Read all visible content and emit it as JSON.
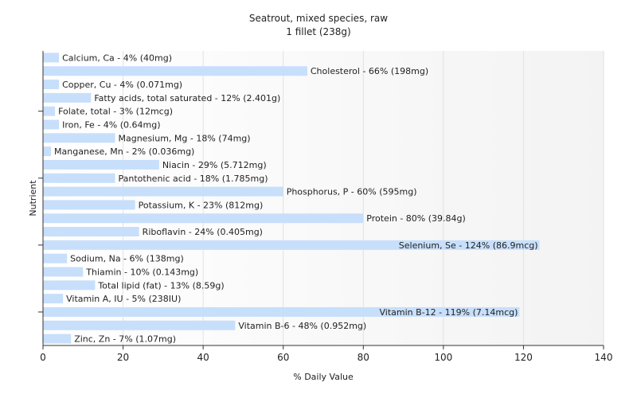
{
  "chart_data": {
    "type": "bar",
    "orientation": "horizontal",
    "title": "Seatrout, mixed species, raw",
    "subtitle": "1 fillet (238g)",
    "xlabel": "% Daily Value",
    "ylabel": "Nutrient",
    "xlim": [
      0,
      140
    ],
    "xticks": [
      0,
      20,
      40,
      60,
      80,
      100,
      120,
      140
    ],
    "grid": true,
    "bar_color": "#c7dffb",
    "categories": [
      "Calcium, Ca",
      "Cholesterol",
      "Copper, Cu",
      "Fatty acids, total saturated",
      "Folate, total",
      "Iron, Fe",
      "Magnesium, Mg",
      "Manganese, Mn",
      "Niacin",
      "Pantothenic acid",
      "Phosphorus, P",
      "Potassium, K",
      "Protein",
      "Riboflavin",
      "Selenium, Se",
      "Sodium, Na",
      "Thiamin",
      "Total lipid (fat)",
      "Vitamin A, IU",
      "Vitamin B-12",
      "Vitamin B-6",
      "Zinc, Zn"
    ],
    "values": [
      4,
      66,
      4,
      12,
      3,
      4,
      18,
      2,
      29,
      18,
      60,
      23,
      80,
      24,
      124,
      6,
      10,
      13,
      5,
      119,
      48,
      7
    ],
    "labels": [
      "Calcium, Ca - 4% (40mg)",
      "Cholesterol - 66% (198mg)",
      "Copper, Cu - 4% (0.071mg)",
      "Fatty acids, total saturated - 12% (2.401g)",
      "Folate, total - 3% (12mcg)",
      "Iron, Fe - 4% (0.64mg)",
      "Magnesium, Mg - 18% (74mg)",
      "Manganese, Mn - 2% (0.036mg)",
      "Niacin - 29% (5.712mg)",
      "Pantothenic acid - 18% (1.785mg)",
      "Phosphorus, P - 60% (595mg)",
      "Potassium, K - 23% (812mg)",
      "Protein - 80% (39.84g)",
      "Riboflavin - 24% (0.405mg)",
      "Selenium, Se - 124% (86.9mcg)",
      "Sodium, Na - 6% (138mg)",
      "Thiamin - 10% (0.143mg)",
      "Total lipid (fat) - 13% (8.59g)",
      "Vitamin A, IU - 5% (238IU)",
      "Vitamin B-12 - 119% (7.14mcg)",
      "Vitamin B-6 - 48% (0.952mg)",
      "Zinc, Zn - 7% (1.07mg)"
    ]
  }
}
